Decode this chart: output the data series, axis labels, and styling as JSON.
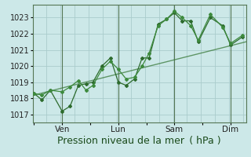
{
  "xlabel": "Pression niveau de la mer ( hPa )",
  "bg_color": "#cce8e8",
  "grid_color": "#aacccc",
  "line_color1": "#2d6b2d",
  "line_color2": "#3d8a3d",
  "line_color_trend": "#3a7a3a",
  "ylim": [
    1016.5,
    1023.8
  ],
  "yticks": [
    1017,
    1018,
    1019,
    1020,
    1021,
    1022,
    1023
  ],
  "xtick_labels": [
    "",
    "Ven",
    "",
    "Lun",
    "",
    "Sam",
    "",
    "Dim"
  ],
  "xtick_positions": [
    0,
    1,
    2,
    3,
    4,
    5,
    6,
    7
  ],
  "xlim": [
    -0.05,
    7.55
  ],
  "series1_x": [
    0.0,
    0.28,
    0.58,
    1.0,
    1.28,
    1.58,
    1.85,
    2.1,
    2.42,
    2.72,
    3.0,
    3.28,
    3.58,
    3.85,
    4.1,
    4.42,
    4.72,
    5.0,
    5.28,
    5.58,
    5.85,
    6.28,
    6.72,
    7.0,
    7.42
  ],
  "series1_y": [
    1018.3,
    1017.9,
    1018.5,
    1017.2,
    1017.5,
    1018.8,
    1018.9,
    1019.0,
    1020.0,
    1020.5,
    1019.0,
    1018.8,
    1019.2,
    1020.5,
    1020.5,
    1022.6,
    1022.9,
    1023.3,
    1022.8,
    1022.8,
    1021.5,
    1023.0,
    1022.5,
    1021.3,
    1021.8
  ],
  "series2_x": [
    0.0,
    0.28,
    0.58,
    1.0,
    1.28,
    1.58,
    1.85,
    2.1,
    2.42,
    2.72,
    3.0,
    3.28,
    3.58,
    3.85,
    4.1,
    4.42,
    4.72,
    5.0,
    5.28,
    5.58,
    5.85,
    6.28,
    6.72,
    7.0,
    7.42
  ],
  "series2_y": [
    1018.3,
    1018.2,
    1018.5,
    1018.4,
    1018.7,
    1019.1,
    1018.5,
    1018.8,
    1019.8,
    1020.3,
    1019.8,
    1019.2,
    1019.3,
    1020.0,
    1020.8,
    1022.5,
    1022.9,
    1023.4,
    1023.0,
    1022.5,
    1021.6,
    1023.2,
    1022.4,
    1021.4,
    1021.9
  ],
  "trend_x": [
    0.0,
    7.55
  ],
  "trend_y": [
    1018.2,
    1021.5
  ],
  "vlines": [
    1,
    3,
    5,
    7
  ],
  "minor_vlines_step": 0.5,
  "fontsize_xlabel": 9,
  "fontsize_ytick": 7,
  "fontsize_xtick": 7.5
}
